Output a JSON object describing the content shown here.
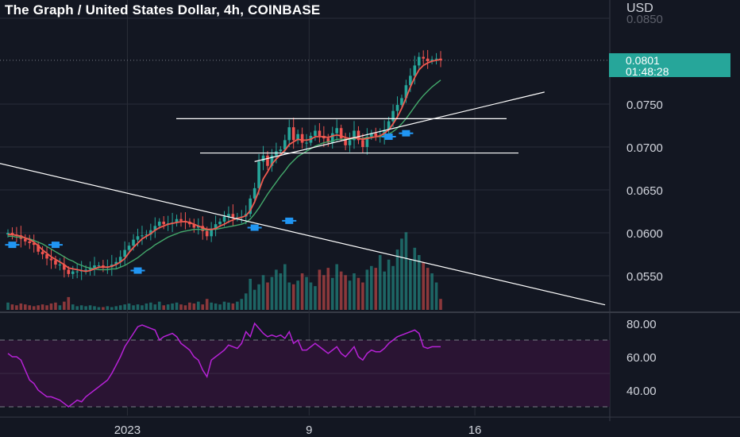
{
  "header": {
    "title": "The Graph / United States Dollar, 4h, COINBASE",
    "currency": "USD"
  },
  "price_badge": {
    "price": "0.0801",
    "countdown": "01:48:28"
  },
  "colors": {
    "background": "#131722",
    "up": "#26a69a",
    "down": "#ef5350",
    "ma_fast": "#f05a4f",
    "ma_slow": "#43a86b",
    "rsi_line": "#b622d6",
    "rsi_band": "#2a1433",
    "trendline": "#ffffff",
    "marker": "#2196f3",
    "grid": "#2a2e39"
  },
  "chart_data": [
    {
      "type": "candlestick",
      "title": "The Graph / United States Dollar, 4h, COINBASE",
      "ylabel": "USD",
      "ylim": [
        0.051,
        0.085
      ],
      "y_ticks": [
        "0.0850",
        "0.0750",
        "0.0700",
        "0.0650",
        "0.0600",
        "0.0550"
      ],
      "x_ticks": [
        "2023",
        "9",
        "16"
      ],
      "last_price": "0.0801",
      "grid": true,
      "series": [
        {
          "name": "Price",
          "kind": "candles",
          "values": [
            0.06,
            0.0598,
            0.0597,
            0.0593,
            0.059,
            0.0588,
            0.0586,
            0.0578,
            0.0575,
            0.057,
            0.0568,
            0.0563,
            0.0563,
            0.0557,
            0.0552,
            0.0555,
            0.0555,
            0.0556,
            0.0557,
            0.0559,
            0.0562,
            0.0562,
            0.056,
            0.056,
            0.0563,
            0.0566,
            0.0572,
            0.058,
            0.0585,
            0.0592,
            0.0596,
            0.0597,
            0.0598,
            0.0603,
            0.0608,
            0.0613,
            0.061,
            0.0611,
            0.0612,
            0.0616,
            0.0614,
            0.0613,
            0.061,
            0.0606,
            0.0608,
            0.0602,
            0.0596,
            0.0605,
            0.061,
            0.0613,
            0.0619,
            0.0622,
            0.0618,
            0.0618,
            0.0619,
            0.0622,
            0.064,
            0.0652,
            0.0683,
            0.069,
            0.0678,
            0.069,
            0.0695,
            0.0697,
            0.0708,
            0.0723,
            0.0708,
            0.0715,
            0.0705,
            0.0705,
            0.0713,
            0.0719,
            0.0713,
            0.071,
            0.0705,
            0.0716,
            0.0722,
            0.071,
            0.0702,
            0.0708,
            0.0719,
            0.0708,
            0.07,
            0.0712,
            0.0716,
            0.0713,
            0.0713,
            0.072,
            0.073,
            0.0742,
            0.0749,
            0.0757,
            0.0772,
            0.0783,
            0.0795,
            0.0805,
            0.0803,
            0.08,
            0.0802,
            0.0803,
            0.0801
          ]
        },
        {
          "name": "MA fast",
          "kind": "line",
          "values": [
            0.0598,
            0.0598,
            0.0597,
            0.0596,
            0.0594,
            0.0592,
            0.0589,
            0.0585,
            0.058,
            0.0576,
            0.0572,
            0.0569,
            0.0566,
            0.0563,
            0.0559,
            0.0558,
            0.0557,
            0.0556,
            0.0555,
            0.0556,
            0.0558,
            0.056,
            0.056,
            0.056,
            0.0561,
            0.0563,
            0.0566,
            0.057,
            0.0577,
            0.0583,
            0.0588,
            0.0593,
            0.0596,
            0.0599,
            0.0603,
            0.0606,
            0.0608,
            0.061,
            0.0611,
            0.0612,
            0.0613,
            0.0613,
            0.0612,
            0.061,
            0.0608,
            0.0606,
            0.0604,
            0.0604,
            0.0605,
            0.0608,
            0.061,
            0.0613,
            0.0615,
            0.0617,
            0.0618,
            0.062,
            0.0626,
            0.0636,
            0.0649,
            0.0663,
            0.0671,
            0.068,
            0.0686,
            0.0691,
            0.0696,
            0.0703,
            0.0706,
            0.0709,
            0.0708,
            0.0708,
            0.0709,
            0.0712,
            0.0712,
            0.0712,
            0.0711,
            0.0713,
            0.0714,
            0.0713,
            0.0711,
            0.071,
            0.0711,
            0.071,
            0.0709,
            0.071,
            0.0711,
            0.0712,
            0.0713,
            0.0716,
            0.072,
            0.0727,
            0.0735,
            0.0745,
            0.0757,
            0.077,
            0.0781,
            0.079,
            0.0795,
            0.0798,
            0.08,
            0.0801,
            0.0802
          ]
        },
        {
          "name": "MA slow",
          "kind": "line",
          "values": [
            0.0596,
            0.0596,
            0.0595,
            0.0595,
            0.0594,
            0.0593,
            0.0591,
            0.0589,
            0.0587,
            0.0584,
            0.0581,
            0.0578,
            0.0575,
            0.0572,
            0.0569,
            0.0567,
            0.0564,
            0.0562,
            0.056,
            0.0559,
            0.0558,
            0.0557,
            0.0557,
            0.0557,
            0.0558,
            0.0558,
            0.056,
            0.0562,
            0.0565,
            0.0568,
            0.0571,
            0.0575,
            0.0579,
            0.0582,
            0.0586,
            0.0589,
            0.0592,
            0.0595,
            0.0597,
            0.0599,
            0.0601,
            0.0602,
            0.0603,
            0.0604,
            0.0604,
            0.0604,
            0.0603,
            0.0604,
            0.0604,
            0.0605,
            0.0606,
            0.0607,
            0.0608,
            0.0609,
            0.061,
            0.0612,
            0.0616,
            0.0622,
            0.0629,
            0.0637,
            0.0645,
            0.0652,
            0.0659,
            0.0666,
            0.0672,
            0.0679,
            0.0684,
            0.0689,
            0.0692,
            0.0695,
            0.0698,
            0.0701,
            0.0703,
            0.0705,
            0.0706,
            0.0707,
            0.0709,
            0.0709,
            0.0709,
            0.0709,
            0.071,
            0.071,
            0.071,
            0.0711,
            0.0711,
            0.0712,
            0.0712,
            0.0713,
            0.0715,
            0.0718,
            0.0722,
            0.0727,
            0.0733,
            0.074,
            0.0747,
            0.0754,
            0.076,
            0.0765,
            0.077,
            0.0774,
            0.0778
          ]
        },
        {
          "name": "Volume",
          "kind": "bars",
          "values": [
            8,
            6,
            5,
            7,
            6,
            5,
            4,
            5,
            6,
            5,
            7,
            8,
            5,
            9,
            14,
            6,
            4,
            5,
            4,
            5,
            4,
            3,
            3,
            4,
            3,
            4,
            5,
            6,
            7,
            5,
            6,
            5,
            7,
            8,
            6,
            9,
            5,
            6,
            7,
            8,
            6,
            5,
            8,
            7,
            9,
            6,
            12,
            8,
            7,
            6,
            9,
            8,
            7,
            9,
            12,
            18,
            34,
            22,
            28,
            38,
            30,
            36,
            44,
            40,
            50,
            30,
            28,
            32,
            40,
            36,
            30,
            26,
            44,
            38,
            46,
            35,
            50,
            42,
            38,
            32,
            40,
            35,
            30,
            44,
            48,
            46,
            60,
            42,
            55,
            48,
            66,
            78,
            85,
            55,
            68,
            60,
            52,
            46,
            40,
            30,
            12
          ]
        }
      ],
      "annotations": {
        "horizontal_levels": [
          0.0733,
          0.0693
        ],
        "support_trendline": [
          [
            57,
            0.0683
          ],
          [
            124,
            0.0764
          ]
        ],
        "resistance_trendline": [
          [
            -2,
            0.0681
          ],
          [
            138,
            0.0516
          ]
        ],
        "markers": [
          {
            "index": 1,
            "value": 0.0586
          },
          {
            "index": 11,
            "value": 0.0586
          },
          {
            "index": 30,
            "value": 0.0556
          },
          {
            "index": 57,
            "value": 0.0606
          },
          {
            "index": 65,
            "value": 0.0614
          },
          {
            "index": 88,
            "value": 0.0712
          },
          {
            "index": 92,
            "value": 0.0716
          }
        ]
      }
    },
    {
      "type": "line",
      "title": "",
      "ylim": [
        20,
        90
      ],
      "y_ticks": [
        "80.00",
        "60.00",
        "40.00"
      ],
      "band": [
        30,
        70
      ],
      "series": [
        {
          "name": "RSI",
          "values": [
            62,
            60,
            60,
            58,
            52,
            46,
            44,
            40,
            38,
            36,
            36,
            35,
            34,
            32,
            30,
            32,
            34,
            33,
            36,
            38,
            40,
            42,
            44,
            46,
            50,
            55,
            60,
            66,
            70,
            74,
            78,
            79,
            78,
            77,
            76,
            70,
            72,
            73,
            74,
            72,
            68,
            66,
            64,
            60,
            58,
            52,
            48,
            58,
            60,
            62,
            64,
            67,
            66,
            65,
            68,
            75,
            72,
            80,
            77,
            74,
            72,
            73,
            72,
            73,
            71,
            75,
            68,
            70,
            64,
            64,
            66,
            68,
            66,
            64,
            62,
            64,
            66,
            62,
            60,
            63,
            66,
            60,
            58,
            62,
            64,
            63,
            63,
            65,
            68,
            70,
            72,
            73,
            74,
            75,
            76,
            74,
            66,
            65,
            66,
            66,
            66
          ]
        }
      ]
    }
  ]
}
